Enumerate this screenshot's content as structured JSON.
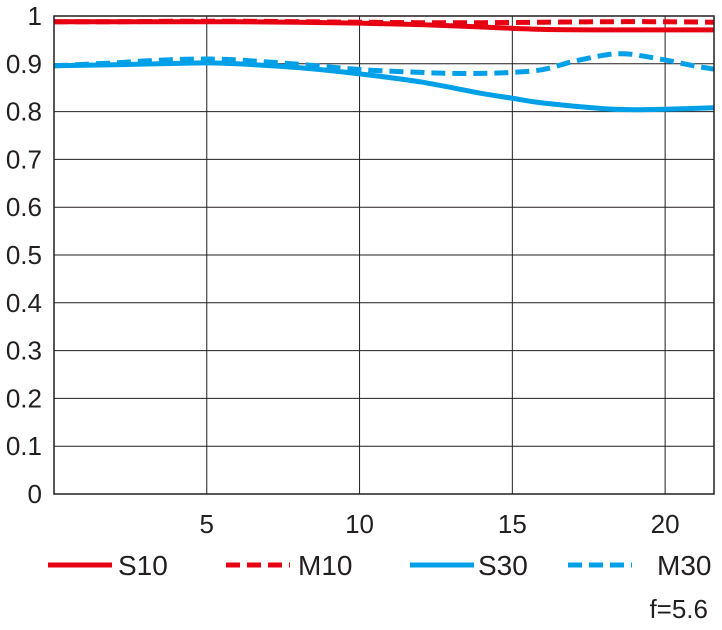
{
  "chart_data": {
    "type": "line",
    "title": "",
    "xlabel": "",
    "ylabel": "",
    "xlim": [
      0,
      21.6
    ],
    "ylim": [
      0,
      1
    ],
    "xticks": [
      5,
      10,
      15,
      20
    ],
    "yticks": [
      0,
      0.1,
      0.2,
      0.3,
      0.4,
      0.5,
      0.6,
      0.7,
      0.8,
      0.9,
      1
    ],
    "ytick_labels": [
      "0",
      "0.1",
      "0.2",
      "0.3",
      "0.4",
      "0.5",
      "0.6",
      "0.7",
      "0.8",
      "0.9",
      "1"
    ],
    "grid": true,
    "legend_position": "bottom",
    "series": [
      {
        "name": "S10",
        "color": "#e60012",
        "dash": "solid",
        "x": [
          0,
          2,
          4,
          6,
          8,
          10,
          12,
          14,
          16,
          18,
          20,
          21.6
        ],
        "y": [
          0.988,
          0.988,
          0.988,
          0.988,
          0.987,
          0.985,
          0.982,
          0.977,
          0.972,
          0.971,
          0.971,
          0.971
        ]
      },
      {
        "name": "M10",
        "color": "#e60012",
        "dash": "dashed",
        "x": [
          0,
          2,
          4,
          6,
          8,
          10,
          12,
          14,
          16,
          18,
          20,
          21.6
        ],
        "y": [
          0.988,
          0.988,
          0.989,
          0.989,
          0.988,
          0.987,
          0.986,
          0.986,
          0.987,
          0.988,
          0.988,
          0.987
        ]
      },
      {
        "name": "S30",
        "color": "#00a0e9",
        "dash": "solid",
        "x": [
          0,
          2,
          4,
          5,
          6,
          8,
          10,
          12,
          14,
          15,
          16,
          18,
          19,
          20,
          21.6
        ],
        "y": [
          0.896,
          0.898,
          0.901,
          0.902,
          0.9,
          0.892,
          0.879,
          0.862,
          0.838,
          0.828,
          0.818,
          0.806,
          0.804,
          0.805,
          0.808
        ]
      },
      {
        "name": "M30",
        "color": "#00a0e9",
        "dash": "dashed",
        "x": [
          0,
          2,
          3,
          4,
          5,
          6,
          8,
          10,
          12,
          13,
          14,
          15,
          16,
          17,
          18,
          18.5,
          19,
          20,
          21,
          21.6
        ],
        "y": [
          0.896,
          0.902,
          0.906,
          0.909,
          0.91,
          0.908,
          0.899,
          0.888,
          0.882,
          0.88,
          0.88,
          0.882,
          0.888,
          0.905,
          0.918,
          0.921,
          0.919,
          0.908,
          0.895,
          0.889
        ]
      }
    ],
    "annotation": "f=5.6"
  }
}
